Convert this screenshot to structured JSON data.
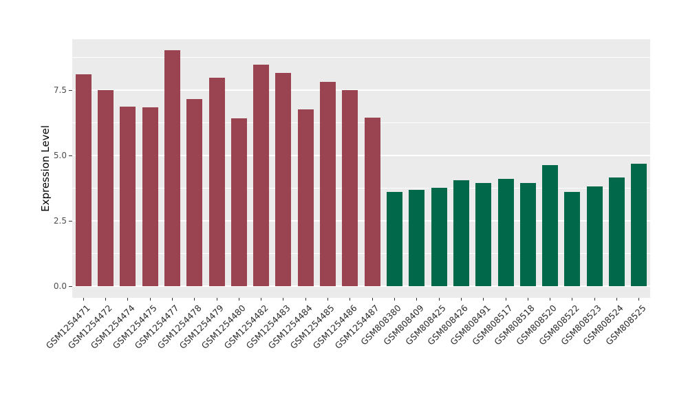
{
  "chart_data": {
    "type": "bar",
    "title": "",
    "xlabel": "",
    "ylabel": "Expression Level",
    "categories": [
      "GSM1254471",
      "GSM1254472",
      "GSM1254474",
      "GSM1254475",
      "GSM1254477",
      "GSM1254478",
      "GSM1254479",
      "GSM1254480",
      "GSM1254482",
      "GSM1254483",
      "GSM1254484",
      "GSM1254485",
      "GSM1254486",
      "GSM1254487",
      "GSM808380",
      "GSM808409",
      "GSM808425",
      "GSM808426",
      "GSM808491",
      "GSM808517",
      "GSM808518",
      "GSM808520",
      "GSM808522",
      "GSM808523",
      "GSM808524",
      "GSM808525"
    ],
    "values": [
      8.1,
      7.5,
      6.88,
      6.85,
      9.02,
      7.15,
      7.97,
      6.42,
      8.47,
      8.17,
      6.75,
      7.82,
      7.5,
      6.44,
      3.59,
      3.69,
      3.76,
      4.06,
      3.95,
      4.11,
      3.95,
      4.62,
      3.61,
      3.8,
      4.16,
      4.67
    ],
    "bar_colors": [
      "#9A4452",
      "#9A4452",
      "#9A4452",
      "#9A4452",
      "#9A4452",
      "#9A4452",
      "#9A4452",
      "#9A4452",
      "#9A4452",
      "#9A4452",
      "#9A4452",
      "#9A4452",
      "#9A4452",
      "#9A4452",
      "#02684A",
      "#02684A",
      "#02684A",
      "#02684A",
      "#02684A",
      "#02684A",
      "#02684A",
      "#02684A",
      "#02684A",
      "#02684A",
      "#02684A",
      "#02684A"
    ],
    "group_colors": {
      "GSM1254xxx": "#9A4452",
      "GSM808xxx": "#02684A"
    },
    "yticks": [
      0,
      2.5,
      5,
      7.5
    ],
    "ytick_labels": [
      "0.0",
      "2.5",
      "5.0",
      "7.5"
    ],
    "minor_gridlines": [
      1.25,
      3.75,
      6.25,
      8.75
    ],
    "ylim": [
      -0.46,
      9.45
    ],
    "grid": true,
    "legend": false,
    "panel_bg": "#EBEBEB",
    "grid_color": "#FFFFFF",
    "axis_text_color": "#4D4D4D",
    "x_label_angle_deg": 45
  }
}
